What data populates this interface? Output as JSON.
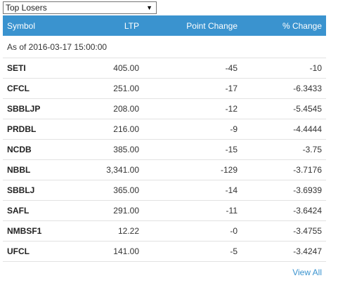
{
  "selector": {
    "selected": "Top Losers",
    "arrow_icon": "dropdown-arrow-icon"
  },
  "table": {
    "headers": {
      "symbol": "Symbol",
      "ltp": "LTP",
      "point_change": "Point Change",
      "pct_change": "% Change"
    },
    "as_of": "As of 2016-03-17 15:00:00",
    "rows": [
      {
        "symbol": "SETI",
        "ltp": "405.00",
        "point_change": "-45",
        "pct_change": "-10"
      },
      {
        "symbol": "CFCL",
        "ltp": "251.00",
        "point_change": "-17",
        "pct_change": "-6.3433"
      },
      {
        "symbol": "SBBLJP",
        "ltp": "208.00",
        "point_change": "-12",
        "pct_change": "-5.4545"
      },
      {
        "symbol": "PRDBL",
        "ltp": "216.00",
        "point_change": "-9",
        "pct_change": "-4.4444"
      },
      {
        "symbol": "NCDB",
        "ltp": "385.00",
        "point_change": "-15",
        "pct_change": "-3.75"
      },
      {
        "symbol": "NBBL",
        "ltp": "3,341.00",
        "point_change": "-129",
        "pct_change": "-3.7176"
      },
      {
        "symbol": "SBBLJ",
        "ltp": "365.00",
        "point_change": "-14",
        "pct_change": "-3.6939"
      },
      {
        "symbol": "SAFL",
        "ltp": "291.00",
        "point_change": "-11",
        "pct_change": "-3.6424"
      },
      {
        "symbol": "NMBSF1",
        "ltp": "12.22",
        "point_change": "-0",
        "pct_change": "-3.4755"
      },
      {
        "symbol": "UFCL",
        "ltp": "141.00",
        "point_change": "-5",
        "pct_change": "-3.4247"
      }
    ]
  },
  "footer": {
    "view_all": "View All"
  },
  "colors": {
    "header_bg": "#3a93cf",
    "link": "#3a93cf",
    "row_border": "#e2e2e2"
  }
}
